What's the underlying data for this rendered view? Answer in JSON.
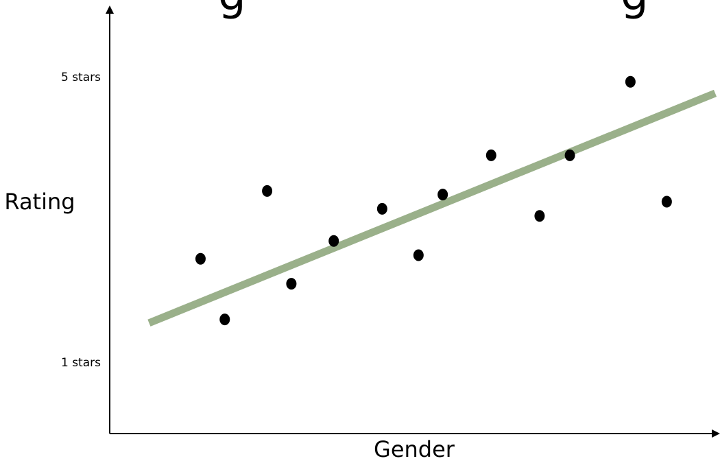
{
  "chart_data": {
    "type": "scatter",
    "xlabel": "Gender",
    "ylabel": "Rating",
    "y_tick_labels": [
      {
        "value": 5,
        "label": "5 stars"
      },
      {
        "value": 1,
        "label": "1 stars"
      }
    ],
    "ylim": [
      0,
      6
    ],
    "xlim": [
      0,
      10
    ],
    "grid": false,
    "points": [
      {
        "x": 1.5,
        "y": 2.45
      },
      {
        "x": 1.9,
        "y": 1.6
      },
      {
        "x": 2.6,
        "y": 3.4
      },
      {
        "x": 3.0,
        "y": 2.1
      },
      {
        "x": 3.7,
        "y": 2.7
      },
      {
        "x": 4.5,
        "y": 3.15
      },
      {
        "x": 5.1,
        "y": 2.5
      },
      {
        "x": 5.5,
        "y": 3.35
      },
      {
        "x": 6.3,
        "y": 3.9
      },
      {
        "x": 7.1,
        "y": 3.05
      },
      {
        "x": 7.6,
        "y": 3.9
      },
      {
        "x": 8.6,
        "y": 4.93
      },
      {
        "x": 9.2,
        "y": 3.25
      }
    ],
    "trendline": {
      "x": [
        0.65,
        10.0
      ],
      "y": [
        1.55,
        4.77
      ]
    },
    "trend_color": "#9ab08a",
    "point_color": "#000000"
  }
}
